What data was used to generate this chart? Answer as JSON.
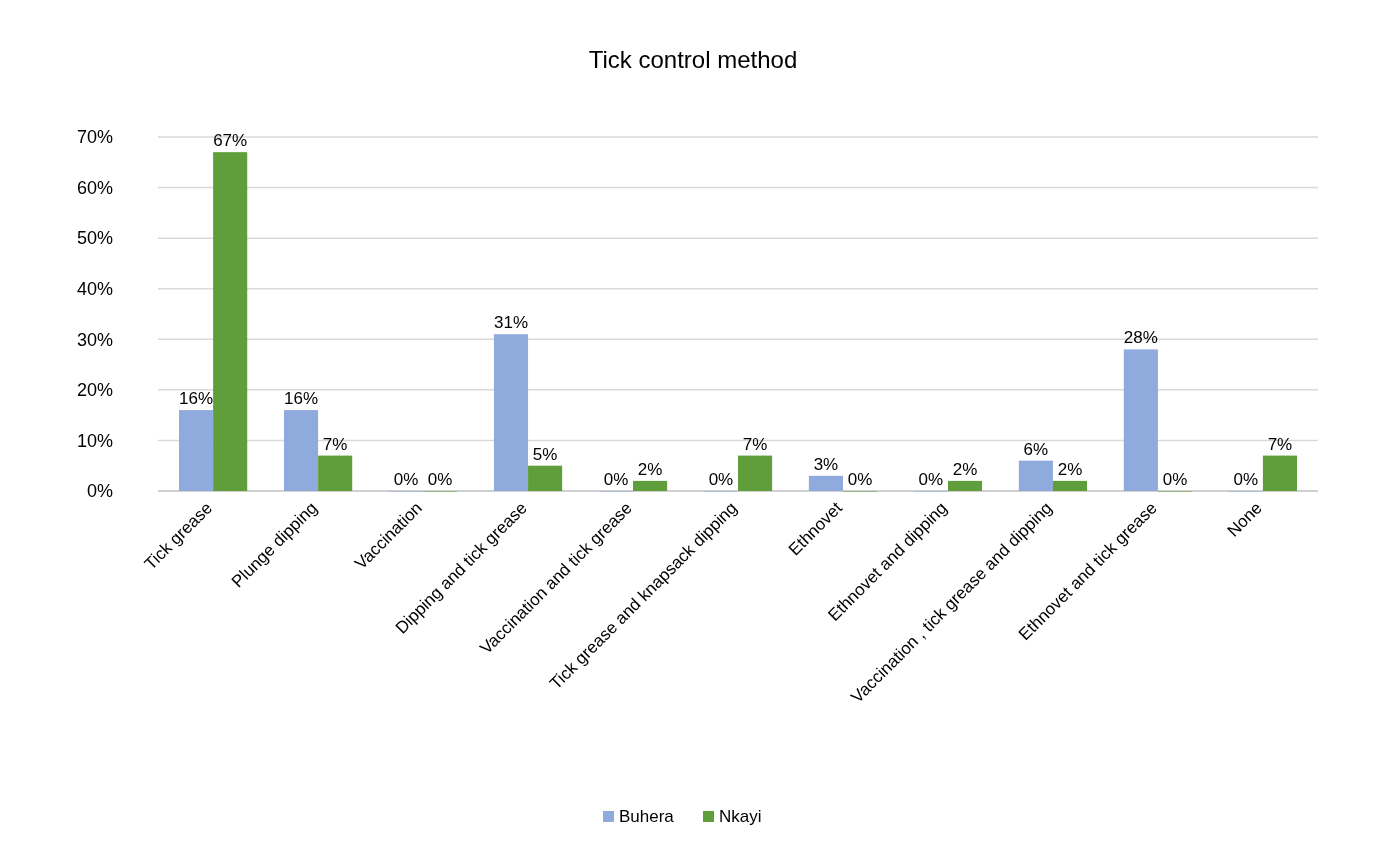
{
  "chart_data": {
    "type": "bar",
    "title": "Tick control method",
    "categories": [
      "Tick grease",
      "Plunge dipping",
      "Vaccination",
      "Dipping and tick grease",
      "Vaccination and tick grease",
      "Tick grease and knapsack dipping",
      "Ethnovet",
      "Ethnovet and dipping",
      "Vaccination , tick grease and dipping",
      "Ethnovet and tick grease",
      "None"
    ],
    "series": [
      {
        "name": "Buhera",
        "color": "#8faadc",
        "values": [
          16,
          16,
          0,
          31,
          0,
          0,
          3,
          0,
          6,
          28,
          0
        ],
        "value_labels": [
          "16%",
          "16%",
          "0%",
          "31%",
          "0%",
          "0%",
          "3%",
          "0%",
          "6%",
          "28%",
          "0%"
        ]
      },
      {
        "name": "Nkayi",
        "color": "#5f9e3a",
        "values": [
          67,
          7,
          0,
          5,
          2,
          7,
          0,
          2,
          2,
          0,
          7
        ],
        "value_labels": [
          "67%",
          "7%",
          "0%",
          "5%",
          "2%",
          "7%",
          "0%",
          "2%",
          "2%",
          "0%",
          "7%"
        ]
      }
    ],
    "ylim": [
      0,
      70
    ],
    "yticks": [
      {
        "value": 0,
        "label": "0%"
      },
      {
        "value": 10,
        "label": "10%"
      },
      {
        "value": 20,
        "label": "20%"
      },
      {
        "value": 30,
        "label": "30%"
      },
      {
        "value": 40,
        "label": "40%"
      },
      {
        "value": 50,
        "label": "50%"
      },
      {
        "value": 60,
        "label": "60%"
      },
      {
        "value": 70,
        "label": "70%"
      }
    ],
    "grid": "y",
    "legend": "bottom"
  }
}
